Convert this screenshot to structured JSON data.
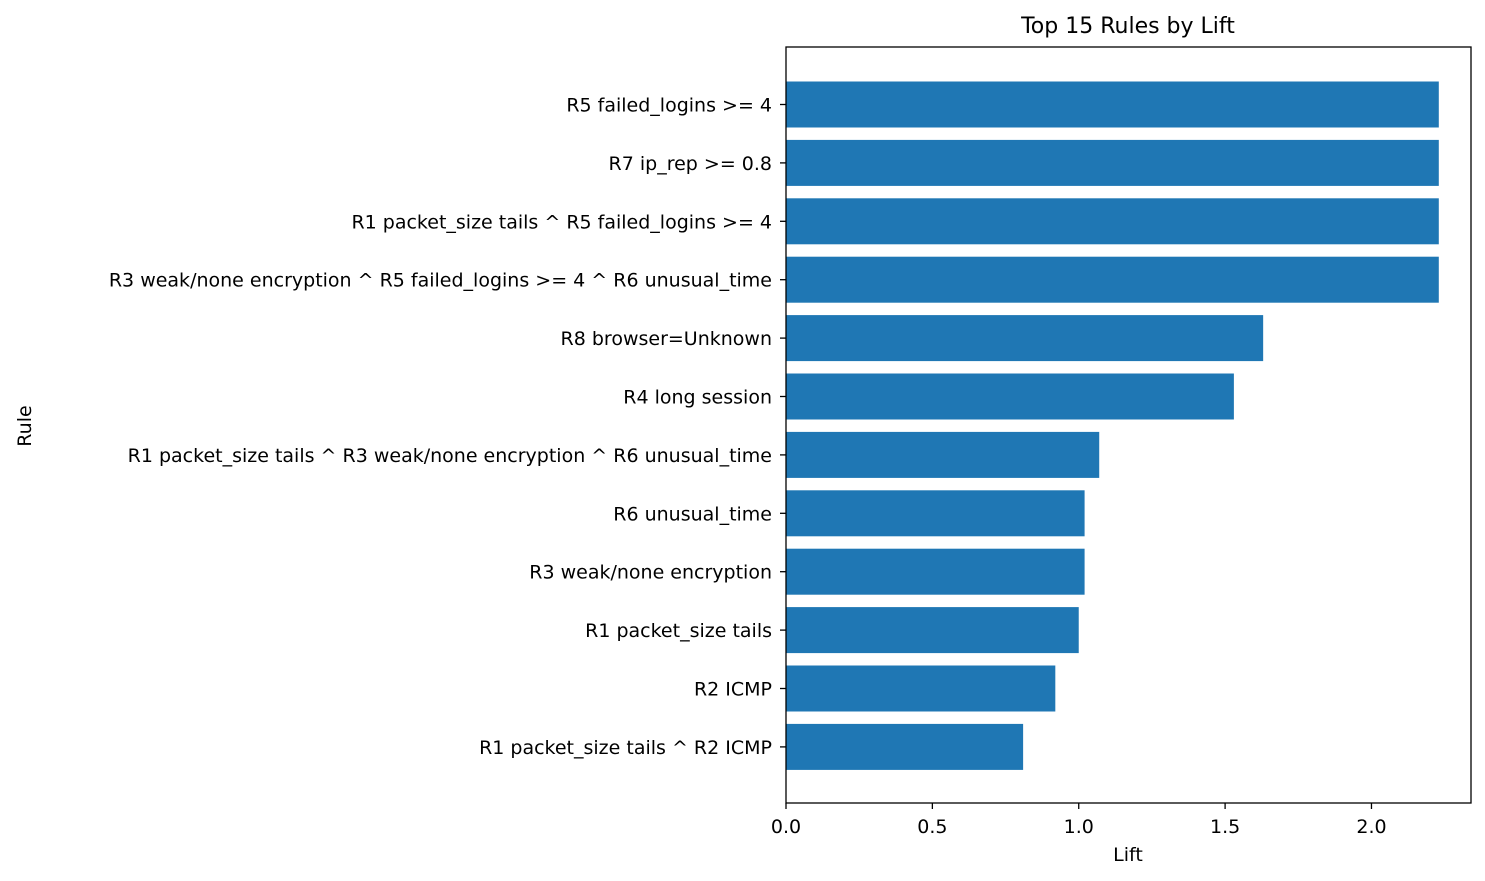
{
  "chart_data": {
    "type": "bar",
    "orientation": "horizontal",
    "title": "Top 15 Rules by Lift",
    "xlabel": "Lift",
    "ylabel": "Rule",
    "xlim": [
      0,
      2.34
    ],
    "xticks": [
      0.0,
      0.5,
      1.0,
      1.5,
      2.0
    ],
    "xtick_labels": [
      "0.0",
      "0.5",
      "1.0",
      "1.5",
      "2.0"
    ],
    "grid": false,
    "legend": "none",
    "bar_color": "#1f77b4",
    "categories": [
      "R5 failed_logins >= 4",
      "R7 ip_rep >= 0.8",
      "R1 packet_size tails ^ R5 failed_logins >= 4",
      "R3 weak/none encryption ^ R5 failed_logins >= 4 ^ R6 unusual_time",
      "R8 browser=Unknown",
      "R4 long session",
      "R1 packet_size tails ^ R3 weak/none encryption ^ R6 unusual_time",
      "R6 unusual_time",
      "R3 weak/none encryption",
      "R1 packet_size tails",
      "R2 ICMP",
      "R1 packet_size tails ^ R2 ICMP"
    ],
    "values": [
      2.23,
      2.23,
      2.23,
      2.23,
      1.63,
      1.53,
      1.07,
      1.02,
      1.02,
      1.0,
      0.92,
      0.81
    ]
  }
}
